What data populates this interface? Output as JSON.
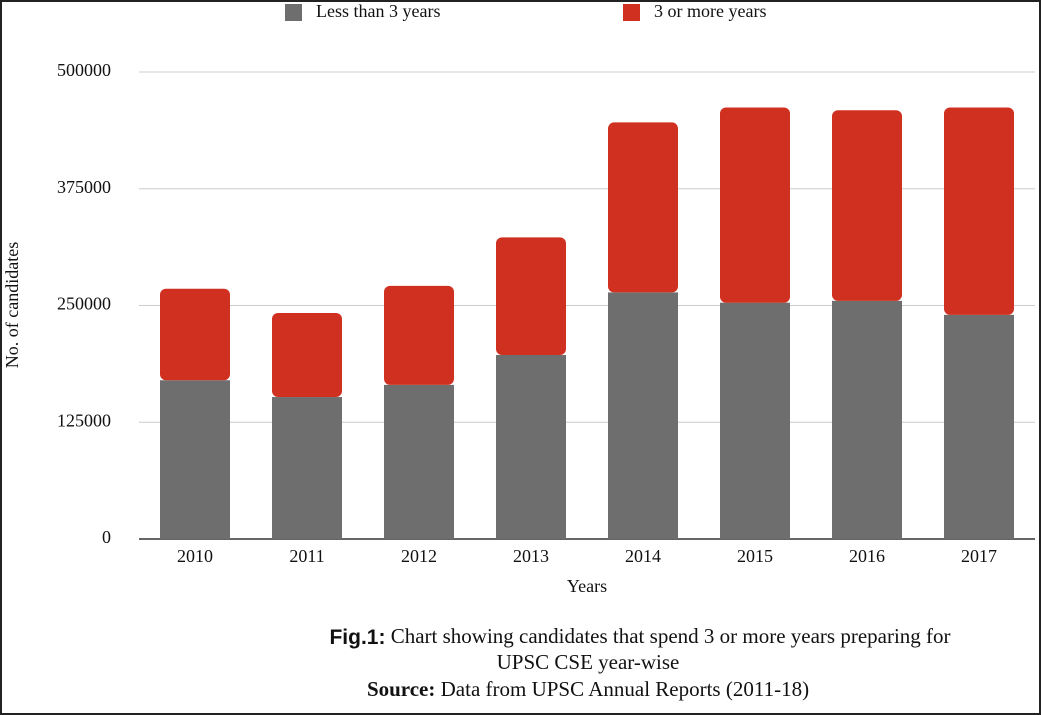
{
  "chart_data": {
    "type": "stacked_bar",
    "y_label": "No. of candidates",
    "x_label": "Years",
    "categories": [
      "2010",
      "2011",
      "2012",
      "2013",
      "2014",
      "2015",
      "2016",
      "2017"
    ],
    "series": [
      {
        "name": "Less than 3 years",
        "color": "#6e6e6e",
        "values": [
          170000,
          152000,
          165000,
          197000,
          264000,
          253000,
          255000,
          240000
        ]
      },
      {
        "name": "3 or more years",
        "color": "#d0301f",
        "values": [
          98000,
          90000,
          106000,
          126000,
          182000,
          209000,
          204000,
          222000
        ]
      }
    ],
    "ylim": [
      0,
      500000
    ],
    "yticks": [
      0,
      125000,
      250000,
      375000,
      500000
    ],
    "grid": true,
    "legend": "top",
    "caption_label": "Fig.1:",
    "caption_text": "Chart showing candidates that spend 3 or more years preparing for",
    "caption_text_2": "UPSC CSE year-wise",
    "source_label": "Source:",
    "source_text": "Data from UPSC Annual Reports  (2011-18)"
  }
}
